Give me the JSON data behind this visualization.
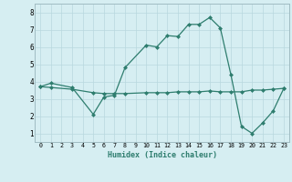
{
  "xlabel": "Humidex (Indice chaleur)",
  "line1_x": [
    0,
    1,
    3,
    5,
    6,
    7,
    8,
    10,
    11,
    12,
    13,
    14,
    15,
    16,
    17,
    18,
    19,
    20,
    21,
    22,
    23
  ],
  "line1_y": [
    3.7,
    3.9,
    3.65,
    2.1,
    3.1,
    3.2,
    4.8,
    6.1,
    6.0,
    6.65,
    6.6,
    7.3,
    7.3,
    7.7,
    7.1,
    4.4,
    1.4,
    1.0,
    1.6,
    2.3,
    3.6
  ],
  "line2_x": [
    0,
    1,
    3,
    5,
    6,
    7,
    8,
    10,
    11,
    12,
    13,
    14,
    15,
    16,
    17,
    18,
    19,
    20,
    21,
    22,
    23
  ],
  "line2_y": [
    3.7,
    3.65,
    3.55,
    3.35,
    3.3,
    3.3,
    3.3,
    3.35,
    3.35,
    3.35,
    3.4,
    3.4,
    3.4,
    3.45,
    3.4,
    3.4,
    3.4,
    3.5,
    3.5,
    3.55,
    3.6
  ],
  "line_color": "#2e7d6e",
  "bg_color": "#d6eef2",
  "grid_color": "#b8d8de",
  "xlim": [
    -0.5,
    23.5
  ],
  "ylim": [
    0.5,
    8.5
  ],
  "xticks": [
    0,
    1,
    2,
    3,
    4,
    5,
    6,
    7,
    8,
    9,
    10,
    11,
    12,
    13,
    14,
    15,
    16,
    17,
    18,
    19,
    20,
    21,
    22,
    23
  ],
  "yticks": [
    1,
    2,
    3,
    4,
    5,
    6,
    7,
    8
  ],
  "xlabel_fontsize": 6.0,
  "tick_fontsize_x": 4.8,
  "tick_fontsize_y": 5.5
}
